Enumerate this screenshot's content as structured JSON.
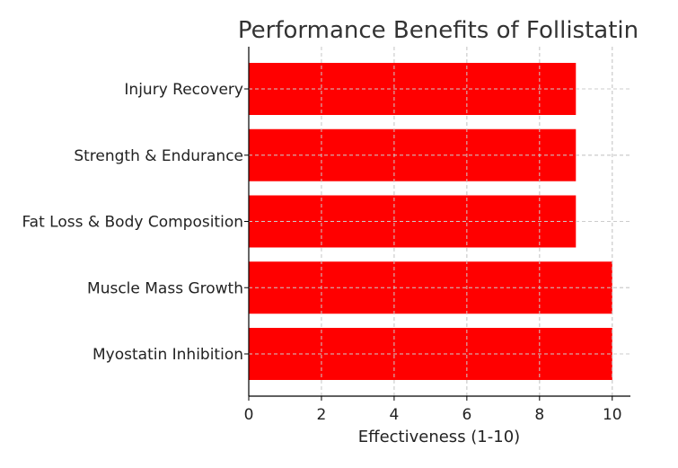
{
  "chart_data": {
    "type": "bar",
    "orientation": "horizontal",
    "title": "Performance Benefits of Follistatin",
    "xlabel": "Effectiveness (1-10)",
    "ylabel": "",
    "categories": [
      "Myostatin Inhibition",
      "Muscle Mass Growth",
      "Fat Loss & Body Composition",
      "Strength & Endurance",
      "Injury Recovery"
    ],
    "values": [
      10,
      10,
      9,
      9,
      9
    ],
    "xlim": [
      0,
      10.5
    ],
    "xticks": [
      0,
      2,
      4,
      6,
      8,
      10
    ],
    "grid": true,
    "bar_color": "#ff0000"
  }
}
